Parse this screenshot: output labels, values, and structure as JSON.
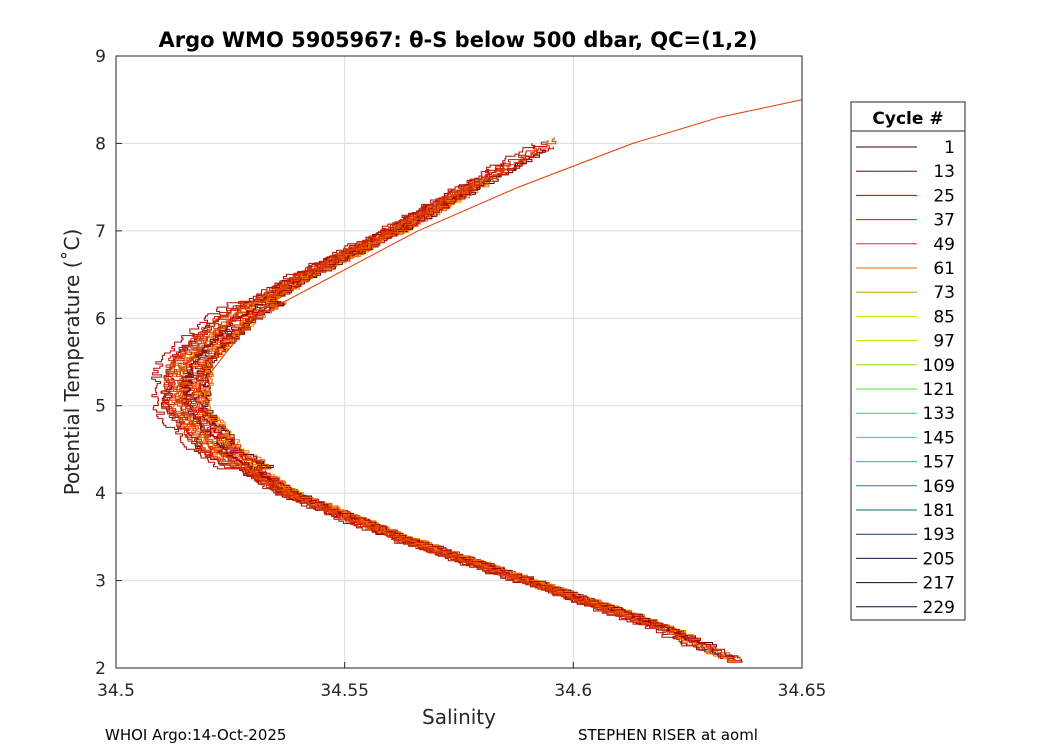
{
  "chart_data": {
    "type": "line",
    "title": "Argo WMO 5905967: θ-S below 500 dbar,  QC=(1,2)",
    "xlabel": "Salinity",
    "ylabel": "Potential Temperature (˚C)",
    "xlim": [
      34.5,
      34.65
    ],
    "ylim": [
      2,
      9
    ],
    "xticks": [
      34.5,
      34.55,
      34.6,
      34.65
    ],
    "xtick_labels": [
      "34.5",
      "34.55",
      "34.6",
      "34.65"
    ],
    "yticks": [
      2,
      3,
      4,
      5,
      6,
      7,
      8,
      9
    ],
    "ytick_labels": [
      "2",
      "3",
      "4",
      "5",
      "6",
      "7",
      "8",
      "9"
    ],
    "grid": true,
    "legend_title": "Cycle #",
    "legend_position": "right-outside",
    "legend": [
      {
        "label": "1",
        "color": "#2a0000"
      },
      {
        "label": "13",
        "color": "#7a0000"
      },
      {
        "label": "25",
        "color": "#b30000"
      },
      {
        "label": "37",
        "color": "#d41a00"
      },
      {
        "label": "49",
        "color": "#e63200"
      },
      {
        "label": "61",
        "color": "#ee6500"
      },
      {
        "label": "73",
        "color": "#c99a00"
      },
      {
        "label": "85",
        "color": "#d6d600"
      },
      {
        "label": "97",
        "color": "#c8e000"
      },
      {
        "label": "109",
        "color": "#96e000"
      },
      {
        "label": "121",
        "color": "#4fdd33"
      },
      {
        "label": "133",
        "color": "#1fd67a"
      },
      {
        "label": "145",
        "color": "#14d0b4"
      },
      {
        "label": "157",
        "color": "#12b7c8"
      },
      {
        "label": "169",
        "color": "#0f8f9a"
      },
      {
        "label": "181",
        "color": "#0c6a7c"
      },
      {
        "label": "193",
        "color": "#0a3d6e"
      },
      {
        "label": "205",
        "color": "#061a52"
      },
      {
        "label": "217",
        "color": "#03103e"
      },
      {
        "label": "229",
        "color": "#020a30"
      }
    ],
    "profile_envelope": {
      "description_free": true,
      "theta": [
        2.05,
        2.5,
        3.0,
        3.5,
        4.0,
        4.5,
        5.0,
        5.5,
        6.0,
        6.5,
        7.0,
        7.5,
        8.0
      ],
      "salinity_center": [
        34.637,
        34.618,
        34.59,
        34.562,
        34.538,
        34.522,
        34.514,
        34.515,
        34.525,
        34.541,
        34.56,
        34.577,
        34.594
      ],
      "series_count": 24,
      "profile_colors": [
        "#5a0000",
        "#8b0000",
        "#a80a00",
        "#c01500",
        "#d42a00",
        "#e03c00",
        "#e85200",
        "#ee6500",
        "#f07a00",
        "#b80000",
        "#cc1e00",
        "#e04400"
      ]
    },
    "extreme_profile": {
      "theta": [
        5.0,
        6.0,
        7.0,
        7.5,
        8.0,
        8.3,
        8.5
      ],
      "salinity": [
        34.515,
        34.53,
        34.566,
        34.588,
        34.613,
        34.632,
        34.65
      ]
    }
  },
  "footer": {
    "left": "WHOI Argo:14-Oct-2025",
    "right": "STEPHEN RISER at aoml"
  }
}
